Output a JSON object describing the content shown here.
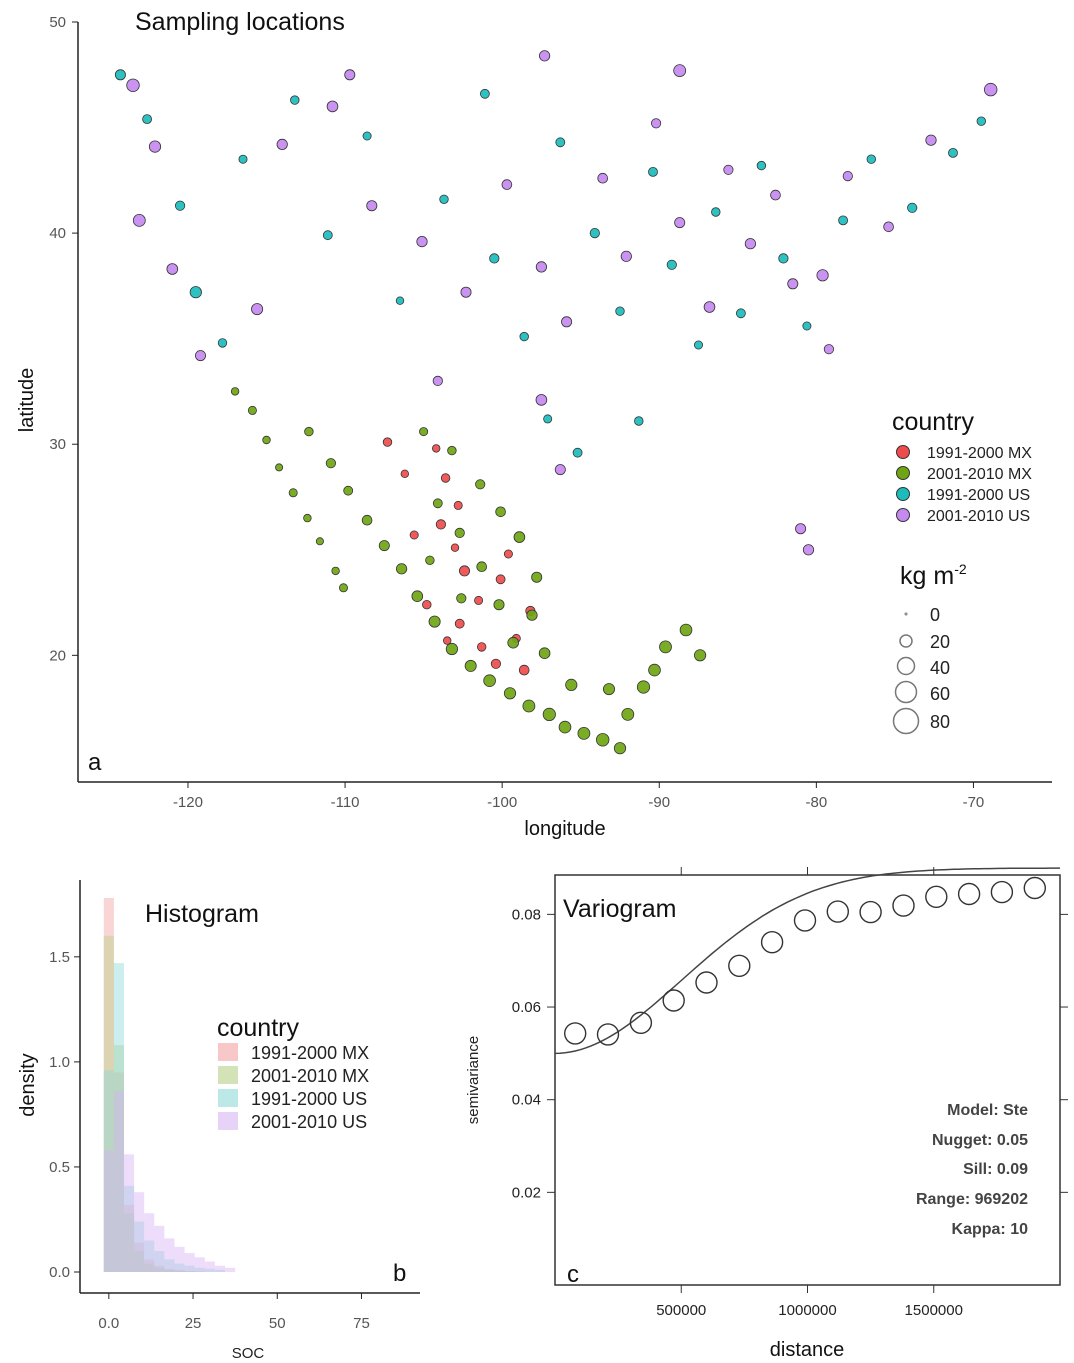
{
  "figure": {
    "panel_a": {
      "letter": "a"
    },
    "panel_b": {
      "letter": "b"
    },
    "panel_c": {
      "letter": "c"
    }
  },
  "colors": {
    "1991-2000 MX": "#ee4c4c",
    "2001-2010 MX": "#6fa514",
    "1991-2000 US": "#1cbcbc",
    "2001-2010 US": "#c58af0",
    "outline": "#333333"
  },
  "chart_data": [
    {
      "id": "map",
      "type": "scatter",
      "title": "Sampling locations",
      "xlabel": "longitude",
      "ylabel": "latitude",
      "xlim": [
        -127,
        -65
      ],
      "ylim": [
        14,
        50
      ],
      "xticks": [
        -120,
        -110,
        -100,
        -90,
        -80,
        -70
      ],
      "yticks": [
        20,
        30,
        40,
        50
      ],
      "xtick_labels": [
        "-120",
        "-110",
        "-100",
        "-90",
        "-80",
        "-70"
      ],
      "ytick_labels": [
        "20",
        "30",
        "40",
        "50"
      ],
      "legend_color_title": "country",
      "legend_size_title_base": "kg m",
      "legend_size_title_sup": "-2",
      "legend_position": "right",
      "series": [
        {
          "name": "1991-2000 MX",
          "points": [
            [
              -104.2,
              29.8,
              8
            ],
            [
              -103.6,
              28.4,
              10
            ],
            [
              -102.8,
              27.1,
              9
            ],
            [
              -103.9,
              26.2,
              12
            ],
            [
              -103.0,
              25.1,
              8
            ],
            [
              -102.4,
              24.0,
              14
            ],
            [
              -101.5,
              22.6,
              9
            ],
            [
              -102.7,
              21.5,
              11
            ],
            [
              -101.3,
              20.4,
              10
            ],
            [
              -100.4,
              19.6,
              12
            ],
            [
              -99.1,
              20.8,
              9
            ],
            [
              -98.6,
              19.3,
              13
            ],
            [
              -103.5,
              20.7,
              8
            ],
            [
              -104.8,
              22.4,
              10
            ],
            [
              -105.6,
              25.7,
              9
            ],
            [
              -106.2,
              28.6,
              8
            ],
            [
              -107.3,
              30.1,
              10
            ],
            [
              -100.1,
              23.6,
              11
            ],
            [
              -99.6,
              24.8,
              9
            ],
            [
              -98.2,
              22.1,
              12
            ]
          ]
        },
        {
          "name": "2001-2010 MX",
          "points": [
            [
              -117.0,
              32.5,
              8
            ],
            [
              -115.9,
              31.6,
              9
            ],
            [
              -115.0,
              30.2,
              8
            ],
            [
              -114.2,
              28.9,
              7
            ],
            [
              -113.3,
              27.7,
              9
            ],
            [
              -112.4,
              26.5,
              8
            ],
            [
              -111.6,
              25.4,
              7
            ],
            [
              -110.6,
              24.0,
              8
            ],
            [
              -110.1,
              23.2,
              9
            ],
            [
              -112.3,
              30.6,
              10
            ],
            [
              -110.9,
              29.1,
              12
            ],
            [
              -109.8,
              27.8,
              11
            ],
            [
              -108.6,
              26.4,
              13
            ],
            [
              -107.5,
              25.2,
              14
            ],
            [
              -106.4,
              24.1,
              15
            ],
            [
              -105.4,
              22.8,
              16
            ],
            [
              -104.3,
              21.6,
              17
            ],
            [
              -103.2,
              20.3,
              18
            ],
            [
              -102.0,
              19.5,
              17
            ],
            [
              -100.8,
              18.8,
              19
            ],
            [
              -99.5,
              18.2,
              18
            ],
            [
              -98.3,
              17.6,
              20
            ],
            [
              -97.0,
              17.2,
              21
            ],
            [
              -96.0,
              16.6,
              19
            ],
            [
              -94.8,
              16.3,
              20
            ],
            [
              -93.6,
              16.0,
              22
            ],
            [
              -92.5,
              15.6,
              18
            ],
            [
              -92.0,
              17.2,
              20
            ],
            [
              -91.0,
              18.5,
              21
            ],
            [
              -89.6,
              20.4,
              20
            ],
            [
              -88.3,
              21.2,
              19
            ],
            [
              -87.4,
              20.0,
              18
            ],
            [
              -90.3,
              19.3,
              19
            ],
            [
              -93.2,
              18.4,
              17
            ],
            [
              -95.6,
              18.6,
              18
            ],
            [
              -97.3,
              20.1,
              16
            ],
            [
              -98.1,
              21.9,
              15
            ],
            [
              -97.8,
              23.7,
              14
            ],
            [
              -98.9,
              25.6,
              16
            ],
            [
              -100.1,
              26.8,
              13
            ],
            [
              -101.4,
              28.1,
              12
            ],
            [
              -103.2,
              29.7,
              10
            ],
            [
              -105.0,
              30.6,
              9
            ],
            [
              -104.1,
              27.2,
              11
            ],
            [
              -102.7,
              25.8,
              12
            ],
            [
              -101.3,
              24.2,
              13
            ],
            [
              -100.2,
              22.4,
              14
            ],
            [
              -99.3,
              20.6,
              16
            ],
            [
              -102.6,
              22.7,
              12
            ],
            [
              -104.6,
              24.5,
              10
            ]
          ]
        },
        {
          "name": "1991-2000 US",
          "points": [
            [
              -124.3,
              47.5,
              14
            ],
            [
              -122.6,
              45.4,
              11
            ],
            [
              -120.5,
              41.3,
              12
            ],
            [
              -119.5,
              37.2,
              18
            ],
            [
              -117.8,
              34.8,
              10
            ],
            [
              -116.5,
              43.5,
              9
            ],
            [
              -113.2,
              46.3,
              10
            ],
            [
              -111.1,
              39.9,
              11
            ],
            [
              -108.6,
              44.6,
              9
            ],
            [
              -106.5,
              36.8,
              8
            ],
            [
              -103.7,
              41.6,
              10
            ],
            [
              -101.1,
              46.6,
              11
            ],
            [
              -100.5,
              38.8,
              12
            ],
            [
              -98.6,
              35.1,
              10
            ],
            [
              -97.1,
              31.2,
              9
            ],
            [
              -96.3,
              44.3,
              11
            ],
            [
              -94.1,
              40.0,
              12
            ],
            [
              -92.5,
              36.3,
              10
            ],
            [
              -90.4,
              42.9,
              11
            ],
            [
              -89.2,
              38.5,
              12
            ],
            [
              -87.5,
              34.7,
              9
            ],
            [
              -86.4,
              41.0,
              10
            ],
            [
              -84.8,
              36.2,
              11
            ],
            [
              -83.5,
              43.2,
              10
            ],
            [
              -82.1,
              38.8,
              12
            ],
            [
              -80.6,
              35.6,
              9
            ],
            [
              -78.3,
              40.6,
              11
            ],
            [
              -76.5,
              43.5,
              10
            ],
            [
              -73.9,
              41.2,
              12
            ],
            [
              -71.3,
              43.8,
              11
            ],
            [
              -69.5,
              45.3,
              10
            ],
            [
              -95.2,
              29.6,
              11
            ],
            [
              -91.3,
              31.1,
              10
            ]
          ]
        },
        {
          "name": "2001-2010 US",
          "points": [
            [
              -123.5,
              47.0,
              22
            ],
            [
              -122.1,
              44.1,
              18
            ],
            [
              -123.1,
              40.6,
              20
            ],
            [
              -121.0,
              38.3,
              16
            ],
            [
              -119.2,
              34.2,
              14
            ],
            [
              -115.6,
              36.4,
              17
            ],
            [
              -114.0,
              44.2,
              15
            ],
            [
              -110.8,
              46.0,
              16
            ],
            [
              -108.3,
              41.3,
              14
            ],
            [
              -105.1,
              39.6,
              15
            ],
            [
              -104.1,
              33.0,
              12
            ],
            [
              -102.3,
              37.2,
              14
            ],
            [
              -99.7,
              42.3,
              13
            ],
            [
              -97.5,
              38.4,
              15
            ],
            [
              -95.9,
              35.8,
              14
            ],
            [
              -97.5,
              32.1,
              16
            ],
            [
              -96.3,
              28.8,
              14
            ],
            [
              -93.6,
              42.6,
              13
            ],
            [
              -92.1,
              38.9,
              15
            ],
            [
              -90.2,
              45.2,
              12
            ],
            [
              -88.7,
              40.5,
              14
            ],
            [
              -86.8,
              36.5,
              16
            ],
            [
              -85.6,
              43.0,
              12
            ],
            [
              -84.2,
              39.5,
              15
            ],
            [
              -82.6,
              41.8,
              13
            ],
            [
              -81.5,
              37.6,
              14
            ],
            [
              -79.6,
              38.0,
              18
            ],
            [
              -78.0,
              42.7,
              12
            ],
            [
              -75.4,
              40.3,
              13
            ],
            [
              -72.7,
              44.4,
              15
            ],
            [
              -68.9,
              46.8,
              22
            ],
            [
              -81.0,
              26.0,
              14
            ],
            [
              -80.5,
              25.0,
              15
            ],
            [
              -79.2,
              34.5,
              12
            ],
            [
              -88.7,
              47.7,
              20
            ],
            [
              -97.3,
              48.4,
              15
            ],
            [
              -109.7,
              47.5,
              14
            ]
          ]
        }
      ]
    },
    {
      "id": "histogram",
      "type": "bar",
      "title": "Histogram",
      "xlabel": "SOC",
      "ylabel": "density",
      "xlim": [
        -5,
        90
      ],
      "ylim": [
        0,
        1.85
      ],
      "xticks": [
        0,
        25,
        50,
        75
      ],
      "yticks": [
        0.0,
        0.5,
        1.0,
        1.5
      ],
      "xtick_labels": [
        "0.0",
        "25",
        "50",
        "75"
      ],
      "ytick_labels": [
        "0.0",
        "0.5",
        "1.0",
        "1.5"
      ],
      "legend_title": "country",
      "legend_position": "top-right",
      "bin_start": 0,
      "bin_width": 3,
      "series": [
        {
          "name": "1991-2000 MX",
          "values": [
            1.78,
            0.95,
            0.32,
            0.14,
            0.06,
            0.03,
            0.015,
            0.01,
            0.005,
            0.003
          ]
        },
        {
          "name": "2001-2010 MX",
          "values": [
            1.6,
            1.08,
            0.28,
            0.1,
            0.04,
            0.02,
            0.01,
            0.005,
            0.003,
            0.002
          ]
        },
        {
          "name": "1991-2000 US",
          "values": [
            0.96,
            1.47,
            0.41,
            0.24,
            0.15,
            0.1,
            0.06,
            0.04,
            0.03,
            0.02,
            0.015,
            0.01
          ]
        },
        {
          "name": "2001-2010 US",
          "values": [
            0.58,
            0.86,
            0.56,
            0.38,
            0.28,
            0.22,
            0.16,
            0.12,
            0.09,
            0.07,
            0.05,
            0.03,
            0.02
          ]
        }
      ]
    },
    {
      "id": "variogram",
      "type": "scatter",
      "title": "Variogram",
      "xlabel": "distance",
      "ylabel": "semivariance",
      "xlim": [
        0,
        2000000
      ],
      "ylim": [
        0.0,
        0.0885
      ],
      "xticks": [
        500000,
        1000000,
        1500000
      ],
      "yticks": [
        0.02,
        0.04,
        0.06,
        0.08
      ],
      "xtick_labels": [
        "500000",
        "1000000",
        "1500000"
      ],
      "ytick_labels": [
        "0.02",
        "0.04",
        "0.06",
        "0.08"
      ],
      "points": {
        "x": [
          80000,
          210000,
          340000,
          470000,
          600000,
          730000,
          860000,
          990000,
          1120000,
          1250000,
          1380000,
          1510000,
          1640000,
          1770000,
          1900000
        ],
        "y": [
          0.0543,
          0.0541,
          0.0566,
          0.0614,
          0.0653,
          0.0689,
          0.074,
          0.0787,
          0.0806,
          0.0805,
          0.0819,
          0.0838,
          0.0844,
          0.0848,
          0.0857
        ]
      },
      "model": {
        "nugget": 0.05,
        "sill": 0.09,
        "range": 969202,
        "kappa": 10
      },
      "annotations": [
        "Model: Ste",
        "Nugget: 0.05",
        "Sill: 0.09",
        "Range: 969202",
        "Kappa: 10"
      ]
    }
  ]
}
